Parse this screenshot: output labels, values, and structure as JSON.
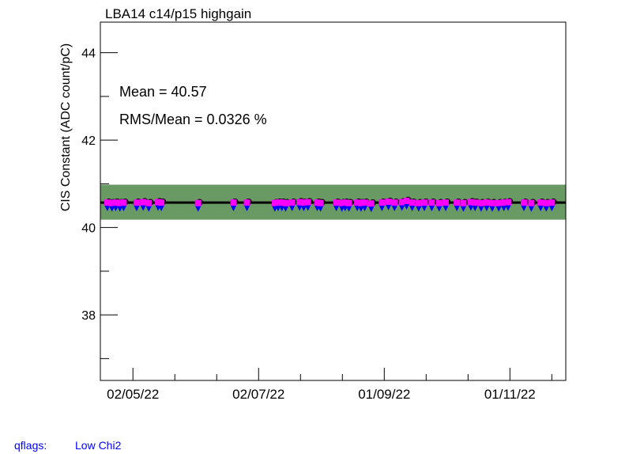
{
  "chart_data": {
    "type": "scatter",
    "title": "LBA14 c14/p15 highgain",
    "ylabel": "CIS Constant (ADC count/pC)",
    "xlabel": "",
    "ylim": [
      36.5,
      44.7
    ],
    "xlim": [
      0,
      100
    ],
    "y_ticks": [
      38,
      40,
      42,
      44
    ],
    "y_minor_ticks": [
      37,
      39,
      41,
      43
    ],
    "x_tick_labels": [
      {
        "label": "02/05/22",
        "x": 7
      },
      {
        "label": "02/07/22",
        "x": 34
      },
      {
        "label": "01/09/22",
        "x": 61
      },
      {
        "label": "01/11/22",
        "x": 88
      }
    ],
    "x_minor_ticks": [
      16,
      25,
      43,
      52,
      70,
      79,
      97
    ],
    "mean_line": 40.57,
    "band": [
      40.18,
      40.98
    ],
    "colors": {
      "band": "#6a9a64",
      "point": "#000000",
      "marker": "#ff00ff",
      "triangle": "#0000ff"
    },
    "points": [
      {
        "x": 1.5,
        "y": 40.57
      },
      {
        "x": 2.5,
        "y": 40.56
      },
      {
        "x": 3.3,
        "y": 40.57
      },
      {
        "x": 4.2,
        "y": 40.56
      },
      {
        "x": 5.0,
        "y": 40.57
      },
      {
        "x": 7.8,
        "y": 40.57
      },
      {
        "x": 9.2,
        "y": 40.58
      },
      {
        "x": 10.4,
        "y": 40.56
      },
      {
        "x": 12.4,
        "y": 40.58
      },
      {
        "x": 13.1,
        "y": 40.57
      },
      {
        "x": 21.0,
        "y": 40.56
      },
      {
        "x": 28.6,
        "y": 40.57
      },
      {
        "x": 31.5,
        "y": 40.57
      },
      {
        "x": 37.5,
        "y": 40.56
      },
      {
        "x": 38.2,
        "y": 40.57
      },
      {
        "x": 39.0,
        "y": 40.57
      },
      {
        "x": 39.8,
        "y": 40.56
      },
      {
        "x": 41.2,
        "y": 40.57
      },
      {
        "x": 42.8,
        "y": 40.58
      },
      {
        "x": 43.7,
        "y": 40.57
      },
      {
        "x": 44.6,
        "y": 40.58
      },
      {
        "x": 46.6,
        "y": 40.57
      },
      {
        "x": 47.3,
        "y": 40.56
      },
      {
        "x": 50.7,
        "y": 40.57
      },
      {
        "x": 51.9,
        "y": 40.56
      },
      {
        "x": 52.6,
        "y": 40.57
      },
      {
        "x": 53.4,
        "y": 40.56
      },
      {
        "x": 55.2,
        "y": 40.57
      },
      {
        "x": 56.0,
        "y": 40.56
      },
      {
        "x": 56.8,
        "y": 40.57
      },
      {
        "x": 58.2,
        "y": 40.55
      },
      {
        "x": 60.5,
        "y": 40.57
      },
      {
        "x": 61.9,
        "y": 40.59
      },
      {
        "x": 63.2,
        "y": 40.57
      },
      {
        "x": 64.8,
        "y": 40.58
      },
      {
        "x": 65.8,
        "y": 40.61
      },
      {
        "x": 67.0,
        "y": 40.57
      },
      {
        "x": 68.4,
        "y": 40.56
      },
      {
        "x": 69.6,
        "y": 40.57
      },
      {
        "x": 71.2,
        "y": 40.57
      },
      {
        "x": 72.8,
        "y": 40.56
      },
      {
        "x": 74.2,
        "y": 40.57
      },
      {
        "x": 76.6,
        "y": 40.57
      },
      {
        "x": 78.0,
        "y": 40.56
      },
      {
        "x": 79.6,
        "y": 40.58
      },
      {
        "x": 80.5,
        "y": 40.57
      },
      {
        "x": 81.8,
        "y": 40.56
      },
      {
        "x": 83.0,
        "y": 40.57
      },
      {
        "x": 84.2,
        "y": 40.56
      },
      {
        "x": 85.6,
        "y": 40.56
      },
      {
        "x": 86.7,
        "y": 40.57
      },
      {
        "x": 87.6,
        "y": 40.58
      },
      {
        "x": 91.0,
        "y": 40.57
      },
      {
        "x": 92.6,
        "y": 40.56
      },
      {
        "x": 94.6,
        "y": 40.57
      },
      {
        "x": 95.8,
        "y": 40.56
      },
      {
        "x": 97.0,
        "y": 40.57
      }
    ]
  },
  "stats": {
    "mean_text": "Mean = 40.57",
    "rms_text": "RMS/Mean = 0.0326 %"
  },
  "qflags": {
    "label": "qflags:",
    "value": "Low Chi2"
  }
}
